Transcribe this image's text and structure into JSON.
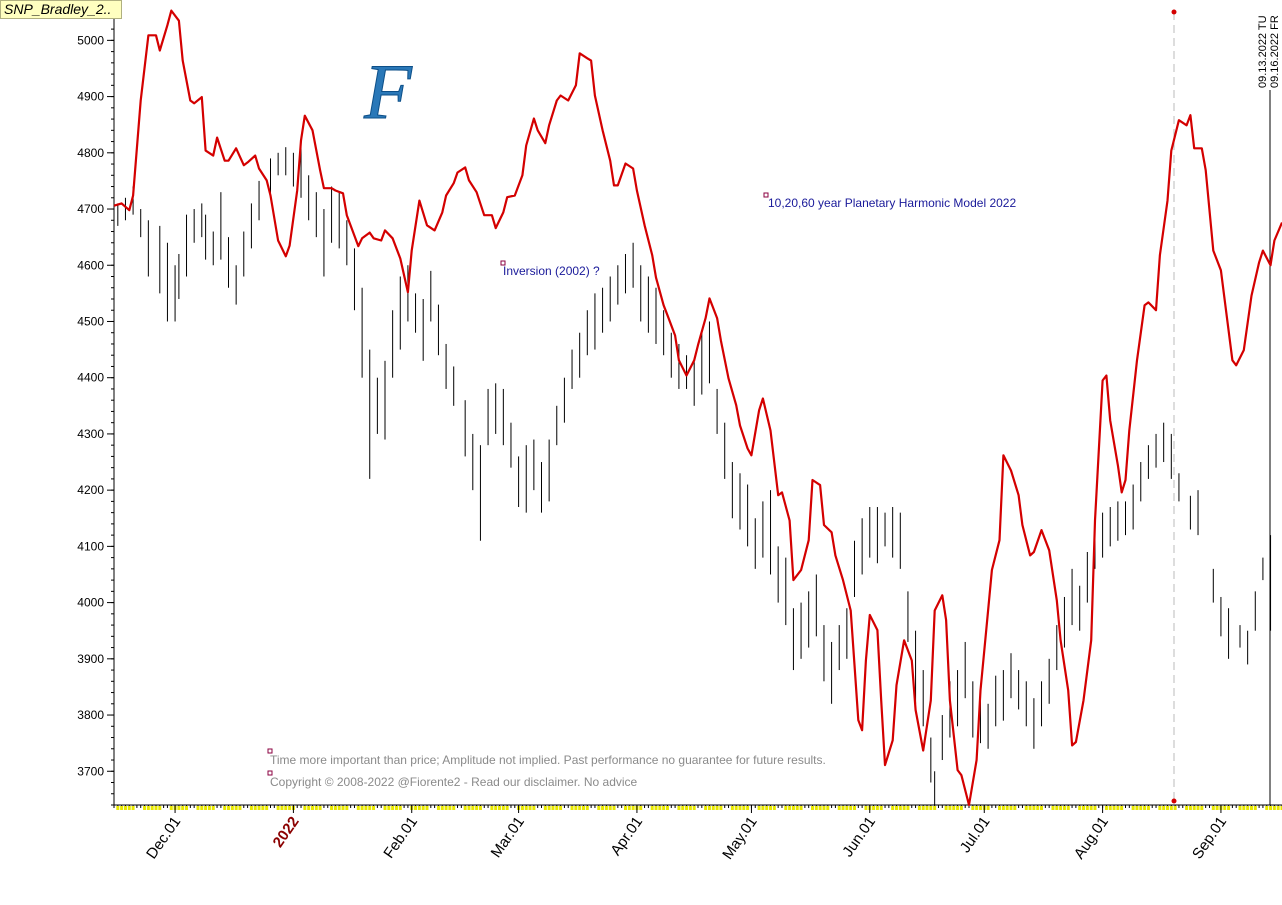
{
  "chart_data": {
    "type": "line",
    "title": "SNP_Bradley_2..",
    "logo": "F",
    "annotations": [
      "10,20,60 year Planetary Harmonic Model 2022",
      "Inversion (2002) ?",
      "Time more important than price; Amplitude not implied. Past performance no guarantee for future results.",
      "Copyright © 2008-2022 @Fiorente2 -  Read our disclaimer. No advice"
    ],
    "date_labels": [
      "09.13.2022 TU",
      "09.16.2022 FR"
    ],
    "xlim": [
      14,
      320
    ],
    "ylim": [
      3640,
      5070
    ],
    "xticks": [
      {
        "value": 30,
        "label": "Dec.01"
      },
      {
        "value": 61,
        "label": "2022"
      },
      {
        "value": 92,
        "label": "Feb.01"
      },
      {
        "value": 120,
        "label": "Mar.01"
      },
      {
        "value": 151,
        "label": "Apr.01"
      },
      {
        "value": 181,
        "label": "May.01"
      },
      {
        "value": 212,
        "label": "Jun.01"
      },
      {
        "value": 242,
        "label": "Jul.01"
      },
      {
        "value": 273,
        "label": "Aug.01"
      },
      {
        "value": 304,
        "label": "Sep.01"
      }
    ],
    "yticks": [
      3700,
      3800,
      3900,
      4000,
      4100,
      4200,
      4300,
      4400,
      4500,
      4600,
      4700,
      4800,
      4900,
      5000
    ],
    "series": [
      {
        "type": "range",
        "color": "#000000",
        "x": [
          15,
          17,
          19,
          21,
          23,
          26,
          28,
          30,
          31,
          33,
          35,
          37,
          38,
          40,
          42,
          44,
          46,
          48,
          50,
          52,
          55,
          57,
          59,
          61,
          63,
          65,
          67,
          69,
          71,
          73,
          75,
          77,
          79,
          81,
          83,
          85,
          87,
          89,
          91,
          93,
          95,
          97,
          99,
          101,
          103,
          106,
          108,
          110,
          112,
          114,
          116,
          118,
          120,
          122,
          124,
          126,
          128,
          130,
          132,
          134,
          136,
          138,
          140,
          142,
          144,
          146,
          148,
          150,
          152,
          154,
          156,
          158,
          160,
          162,
          164,
          166,
          168,
          170,
          172,
          174,
          176,
          178,
          180,
          182,
          184,
          186,
          188,
          190,
          192,
          194,
          196,
          198,
          200,
          202,
          204,
          206,
          208,
          210,
          212,
          214,
          216,
          218,
          220,
          222,
          224,
          226,
          228,
          229,
          231,
          233,
          235,
          237,
          239,
          241,
          243,
          245,
          247,
          249,
          251,
          253,
          255,
          257,
          259,
          261,
          263,
          265,
          267,
          269,
          271,
          273,
          275,
          277,
          279,
          281,
          283,
          285,
          287,
          289,
          291,
          293,
          296,
          298,
          302,
          304,
          306,
          309,
          311,
          313,
          315,
          317
        ],
        "high": [
          4710,
          4720,
          4740,
          4700,
          4680,
          4670,
          4640,
          4600,
          4620,
          4690,
          4700,
          4710,
          4690,
          4660,
          4730,
          4650,
          4600,
          4660,
          4710,
          4750,
          4790,
          4800,
          4810,
          4800,
          4810,
          4760,
          4730,
          4700,
          4740,
          4730,
          4680,
          4630,
          4560,
          4450,
          4400,
          4430,
          4520,
          4580,
          4600,
          4550,
          4540,
          4590,
          4530,
          4460,
          4420,
          4360,
          4300,
          4280,
          4380,
          4390,
          4380,
          4320,
          4260,
          4280,
          4290,
          4250,
          4290,
          4350,
          4400,
          4450,
          4480,
          4520,
          4550,
          4560,
          4580,
          4600,
          4620,
          4640,
          4600,
          4580,
          4560,
          4520,
          4480,
          4460,
          4440,
          4430,
          4480,
          4500,
          4380,
          4320,
          4250,
          4230,
          4210,
          4150,
          4180,
          4200,
          4100,
          4080,
          3990,
          4000,
          4020,
          4050,
          3960,
          3930,
          3960,
          3990,
          4110,
          4150,
          4170,
          4170,
          4160,
          4170,
          4160,
          4020,
          3950,
          3880,
          3760,
          3700,
          3800,
          3860,
          3880,
          3930,
          3860,
          3830,
          3820,
          3870,
          3880,
          3910,
          3880,
          3860,
          3830,
          3860,
          3900,
          3960,
          4010,
          4060,
          4030,
          4090,
          4130,
          4160,
          4170,
          4180,
          4180,
          4210,
          4250,
          4280,
          4300,
          4320,
          4300,
          4230,
          4190,
          4200,
          4060,
          4010,
          3990,
          3960,
          3950,
          4020,
          4080,
          4120
        ],
        "low": [
          4670,
          4680,
          4690,
          4650,
          4580,
          4550,
          4500,
          4500,
          4540,
          4580,
          4640,
          4650,
          4610,
          4600,
          4610,
          4560,
          4530,
          4580,
          4630,
          4680,
          4720,
          4760,
          4760,
          4740,
          4720,
          4680,
          4650,
          4580,
          4640,
          4630,
          4600,
          4520,
          4400,
          4220,
          4300,
          4290,
          4400,
          4450,
          4500,
          4480,
          4430,
          4500,
          4440,
          4380,
          4350,
          4260,
          4200,
          4110,
          4280,
          4300,
          4280,
          4240,
          4170,
          4160,
          4200,
          4160,
          4180,
          4280,
          4320,
          4380,
          4400,
          4440,
          4450,
          4480,
          4500,
          4530,
          4550,
          4560,
          4500,
          4480,
          4460,
          4440,
          4400,
          4380,
          4380,
          4350,
          4370,
          4390,
          4300,
          4220,
          4150,
          4130,
          4100,
          4060,
          4080,
          4050,
          4000,
          3960,
          3880,
          3900,
          3920,
          3940,
          3860,
          3820,
          3880,
          3900,
          4010,
          4050,
          4080,
          4070,
          4100,
          4080,
          4060,
          3930,
          3820,
          3780,
          3680,
          3640,
          3720,
          3760,
          3780,
          3830,
          3760,
          3750,
          3740,
          3780,
          3790,
          3830,
          3810,
          3780,
          3740,
          3780,
          3820,
          3880,
          3920,
          3960,
          3950,
          4000,
          4060,
          4080,
          4100,
          4110,
          4120,
          4130,
          4180,
          4220,
          4240,
          4250,
          4220,
          4180,
          4130,
          4120,
          4000,
          3940,
          3900,
          3920,
          3890,
          3950,
          4040,
          3950
        ]
      },
      {
        "type": "line",
        "color": "#d40000",
        "x": [
          14,
          16,
          18,
          19,
          21,
          23,
          25,
          26,
          28,
          29,
          31,
          32,
          34,
          35,
          37,
          38,
          40,
          41,
          43,
          44,
          46,
          48,
          49,
          51,
          52,
          54,
          55,
          57,
          59,
          60,
          62,
          63,
          64,
          66,
          68,
          69,
          71,
          72,
          74,
          75,
          78,
          79,
          81,
          82,
          84,
          85,
          87,
          89,
          91,
          92,
          94,
          96,
          98,
          100,
          101,
          103,
          104,
          106,
          107,
          109,
          111,
          113,
          114,
          116,
          117,
          119,
          121,
          122,
          124,
          125,
          127,
          128,
          130,
          131,
          133,
          135,
          136,
          138,
          139,
          140,
          142,
          144,
          145,
          146,
          148,
          150,
          151,
          153,
          155,
          156,
          158,
          159,
          161,
          162,
          164,
          166,
          167,
          169,
          170,
          172,
          173,
          175,
          177,
          178,
          180,
          181,
          183,
          184,
          186,
          188,
          189,
          191,
          192,
          194,
          196,
          197,
          199,
          200,
          202,
          203,
          205,
          207,
          208,
          209,
          210,
          211,
          212,
          214,
          215,
          216,
          218,
          219,
          221,
          223,
          224,
          226,
          228,
          229,
          231,
          232,
          233,
          235,
          236,
          238,
          240,
          241,
          243,
          244,
          246,
          247,
          249,
          251,
          252,
          254,
          255,
          257,
          259,
          261,
          262,
          264,
          265,
          266,
          268,
          270,
          271,
          273,
          274,
          275,
          277,
          278,
          279,
          280,
          282,
          284,
          285,
          287,
          288,
          290,
          291,
          293,
          295,
          296,
          297,
          299,
          300,
          302,
          304,
          305,
          307,
          308,
          310,
          312,
          314,
          315,
          317,
          318,
          320
        ],
        "values": [
          4706,
          4710,
          4698,
          4724,
          4893,
          5009,
          5009,
          4982,
          5027,
          5053,
          5035,
          4964,
          4893,
          4888,
          4899,
          4804,
          4795,
          4827,
          4786,
          4786,
          4808,
          4778,
          4783,
          4795,
          4772,
          4751,
          4724,
          4644,
          4616,
          4635,
          4733,
          4822,
          4866,
          4840,
          4769,
          4737,
          4737,
          4733,
          4728,
          4689,
          4634,
          4648,
          4658,
          4648,
          4644,
          4662,
          4648,
          4612,
          4552,
          4626,
          4715,
          4671,
          4662,
          4694,
          4724,
          4746,
          4765,
          4774,
          4751,
          4730,
          4689,
          4689,
          4666,
          4694,
          4721,
          4724,
          4760,
          4813,
          4861,
          4840,
          4817,
          4849,
          4893,
          4902,
          4893,
          4920,
          4977,
          4968,
          4964,
          4902,
          4840,
          4786,
          4742,
          4742,
          4781,
          4772,
          4733,
          4671,
          4618,
          4578,
          4529,
          4511,
          4475,
          4431,
          4404,
          4431,
          4458,
          4506,
          4541,
          4506,
          4466,
          4399,
          4351,
          4315,
          4274,
          4262,
          4342,
          4363,
          4306,
          4191,
          4196,
          4146,
          4040,
          4058,
          4111,
          4218,
          4209,
          4138,
          4125,
          4084,
          4040,
          3986,
          3889,
          3791,
          3773,
          3897,
          3978,
          3951,
          3826,
          3711,
          3755,
          3853,
          3933,
          3897,
          3809,
          3737,
          3826,
          3986,
          4013,
          3969,
          3826,
          3702,
          3693,
          3640,
          3720,
          3844,
          3986,
          4058,
          4111,
          4262,
          4235,
          4191,
          4138,
          4084,
          4090,
          4129,
          4093,
          4004,
          3933,
          3844,
          3746,
          3752,
          3826,
          3933,
          4146,
          4395,
          4404,
          4324,
          4244,
          4196,
          4218,
          4306,
          4431,
          4529,
          4534,
          4520,
          4618,
          4715,
          4804,
          4858,
          4849,
          4867,
          4808,
          4808,
          4769,
          4626,
          4591,
          4538,
          4431,
          4422,
          4449,
          4546,
          4605,
          4626,
          4600,
          4644,
          4676
        ]
      }
    ]
  }
}
